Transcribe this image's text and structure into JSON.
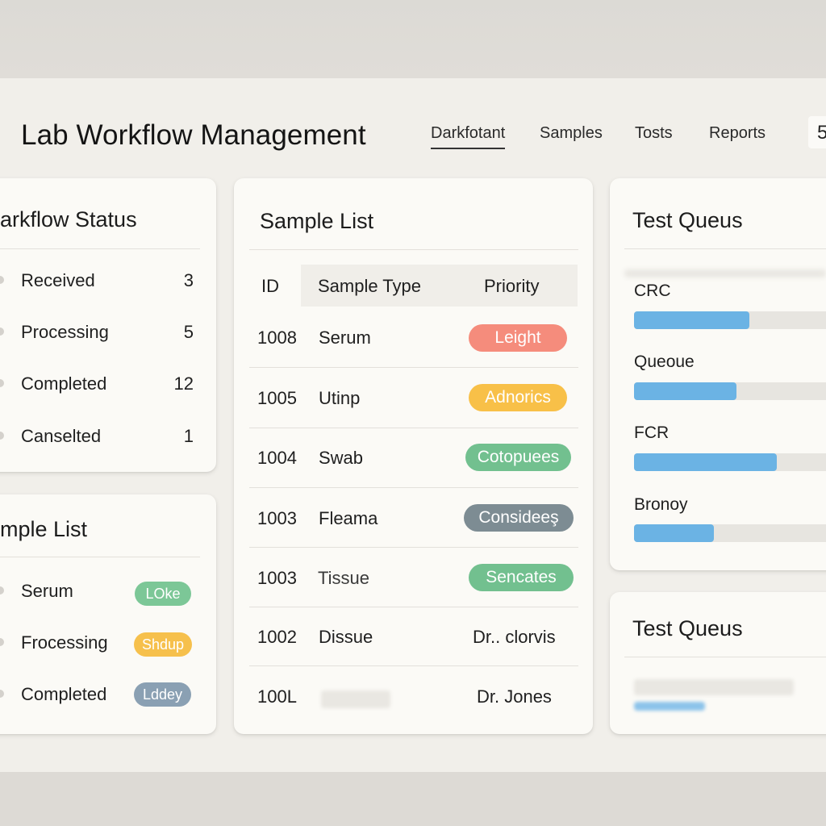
{
  "app_title": "Lab Workflow Management",
  "nav": {
    "tabs": [
      {
        "label": "Darkfotant",
        "active": true
      },
      {
        "label": "Samples",
        "active": false
      },
      {
        "label": "Tosts",
        "active": false
      },
      {
        "label": "Reports",
        "active": false
      }
    ],
    "corner_glyph": "5"
  },
  "workflow_status": {
    "title": "arkflow Status",
    "items": [
      {
        "label": "Received",
        "count": "3"
      },
      {
        "label": "Processing",
        "count": "5"
      },
      {
        "label": "Completed",
        "count": "12"
      },
      {
        "label": "Canselted",
        "count": "1"
      }
    ]
  },
  "mini_sample_list": {
    "title": "mple List",
    "items": [
      {
        "label": "Serum",
        "tag": "LOke",
        "color": "#7cc797"
      },
      {
        "label": "Frocessing",
        "tag": "Shdup",
        "color": "#f6c04c"
      },
      {
        "label": "Completed",
        "tag": "Lddey",
        "color": "#8aa0b3"
      }
    ]
  },
  "sample_list": {
    "title": "Sample List",
    "columns": [
      "ID",
      "Sample Type",
      "Priority"
    ],
    "rows": [
      {
        "id": "1008",
        "type": "Serum",
        "priority": "Leight",
        "color": "#f58c7c"
      },
      {
        "id": "1005",
        "type": "Utinp",
        "priority": "Adnorics",
        "color": "#f8c048"
      },
      {
        "id": "1004",
        "type": "Swab",
        "priority": "Cotopuees",
        "color": "#72c08f"
      },
      {
        "id": "1003",
        "type": "Fleama",
        "priority": "Consideeş",
        "color": "#7d8c93"
      },
      {
        "id": "1003",
        "type": "Tissue",
        "priority": "Sencates",
        "color": "#72c08f"
      },
      {
        "id": "1002",
        "type": "Dissue",
        "priority": "Dr.. clorvis",
        "color": ""
      },
      {
        "id": "100L",
        "type": "",
        "priority": "Dr. Jones",
        "color": ""
      }
    ]
  },
  "test_queue": {
    "title": "Test Queus",
    "items": [
      {
        "label": "CRC",
        "progress": 0.55
      },
      {
        "label": "Queoue",
        "progress": 0.49
      },
      {
        "label": "FCR",
        "progress": 0.68
      },
      {
        "label": "Bronoy",
        "progress": 0.38
      }
    ]
  },
  "test_queue_2": {
    "title": "Test Queus"
  }
}
